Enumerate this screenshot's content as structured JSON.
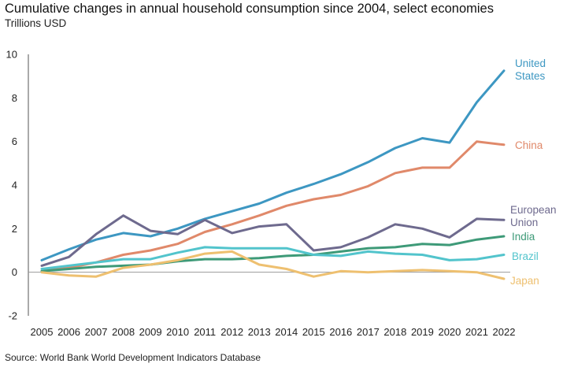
{
  "chart_data": {
    "type": "line",
    "title": "Cumulative changes in annual household consumption since 2004, select economies",
    "subtitle": "Trillions USD",
    "source": "Source: World Bank World Development Indicators Database",
    "xlabel": "",
    "ylabel": "",
    "ylim": [
      -2,
      10
    ],
    "yticks": [
      -2,
      0,
      2,
      4,
      6,
      8,
      10
    ],
    "grid": false,
    "legend": "direct labels at right end of lines",
    "x": [
      "2005",
      "2006",
      "2007",
      "2008",
      "2009",
      "2010",
      "2011",
      "2012",
      "2013",
      "2014",
      "2015",
      "2016",
      "2017",
      "2018",
      "2019",
      "2020",
      "2021",
      "2022"
    ],
    "series": [
      {
        "name": "United States",
        "label_lines": [
          "United",
          "States"
        ],
        "color": "#3d97c2",
        "values": [
          0.55,
          1.05,
          1.5,
          1.8,
          1.65,
          2.0,
          2.45,
          2.8,
          3.15,
          3.65,
          4.05,
          4.5,
          5.05,
          5.7,
          6.15,
          5.95,
          7.8,
          9.25
        ]
      },
      {
        "name": "China",
        "label_lines": [
          "China"
        ],
        "color": "#e0896a",
        "values": [
          0.05,
          0.2,
          0.45,
          0.8,
          1.0,
          1.3,
          1.85,
          2.2,
          2.6,
          3.05,
          3.35,
          3.55,
          3.95,
          4.55,
          4.8,
          4.8,
          6.0,
          5.85
        ]
      },
      {
        "name": "European Union",
        "label_lines": [
          "European",
          "Union"
        ],
        "color": "#6e6a8e",
        "values": [
          0.3,
          0.7,
          1.75,
          2.6,
          1.9,
          1.75,
          2.4,
          1.8,
          2.1,
          2.2,
          1.0,
          1.15,
          1.6,
          2.2,
          2.0,
          1.6,
          2.45,
          2.4
        ]
      },
      {
        "name": "India",
        "label_lines": [
          "India"
        ],
        "color": "#3e9a78",
        "values": [
          0.05,
          0.15,
          0.25,
          0.3,
          0.35,
          0.5,
          0.6,
          0.6,
          0.65,
          0.75,
          0.8,
          0.95,
          1.1,
          1.15,
          1.3,
          1.25,
          1.5,
          1.65
        ]
      },
      {
        "name": "Brazil",
        "label_lines": [
          "Brazil"
        ],
        "color": "#52c4cc",
        "values": [
          0.15,
          0.3,
          0.45,
          0.6,
          0.6,
          0.9,
          1.15,
          1.1,
          1.1,
          1.1,
          0.8,
          0.75,
          0.95,
          0.85,
          0.8,
          0.55,
          0.6,
          0.8
        ]
      },
      {
        "name": "Japan",
        "label_lines": [
          "Japan"
        ],
        "color": "#eec070",
        "values": [
          0.0,
          -0.15,
          -0.2,
          0.2,
          0.35,
          0.55,
          0.85,
          0.95,
          0.35,
          0.15,
          -0.2,
          0.05,
          0.0,
          0.05,
          0.1,
          0.05,
          0.0,
          -0.3
        ]
      }
    ]
  }
}
